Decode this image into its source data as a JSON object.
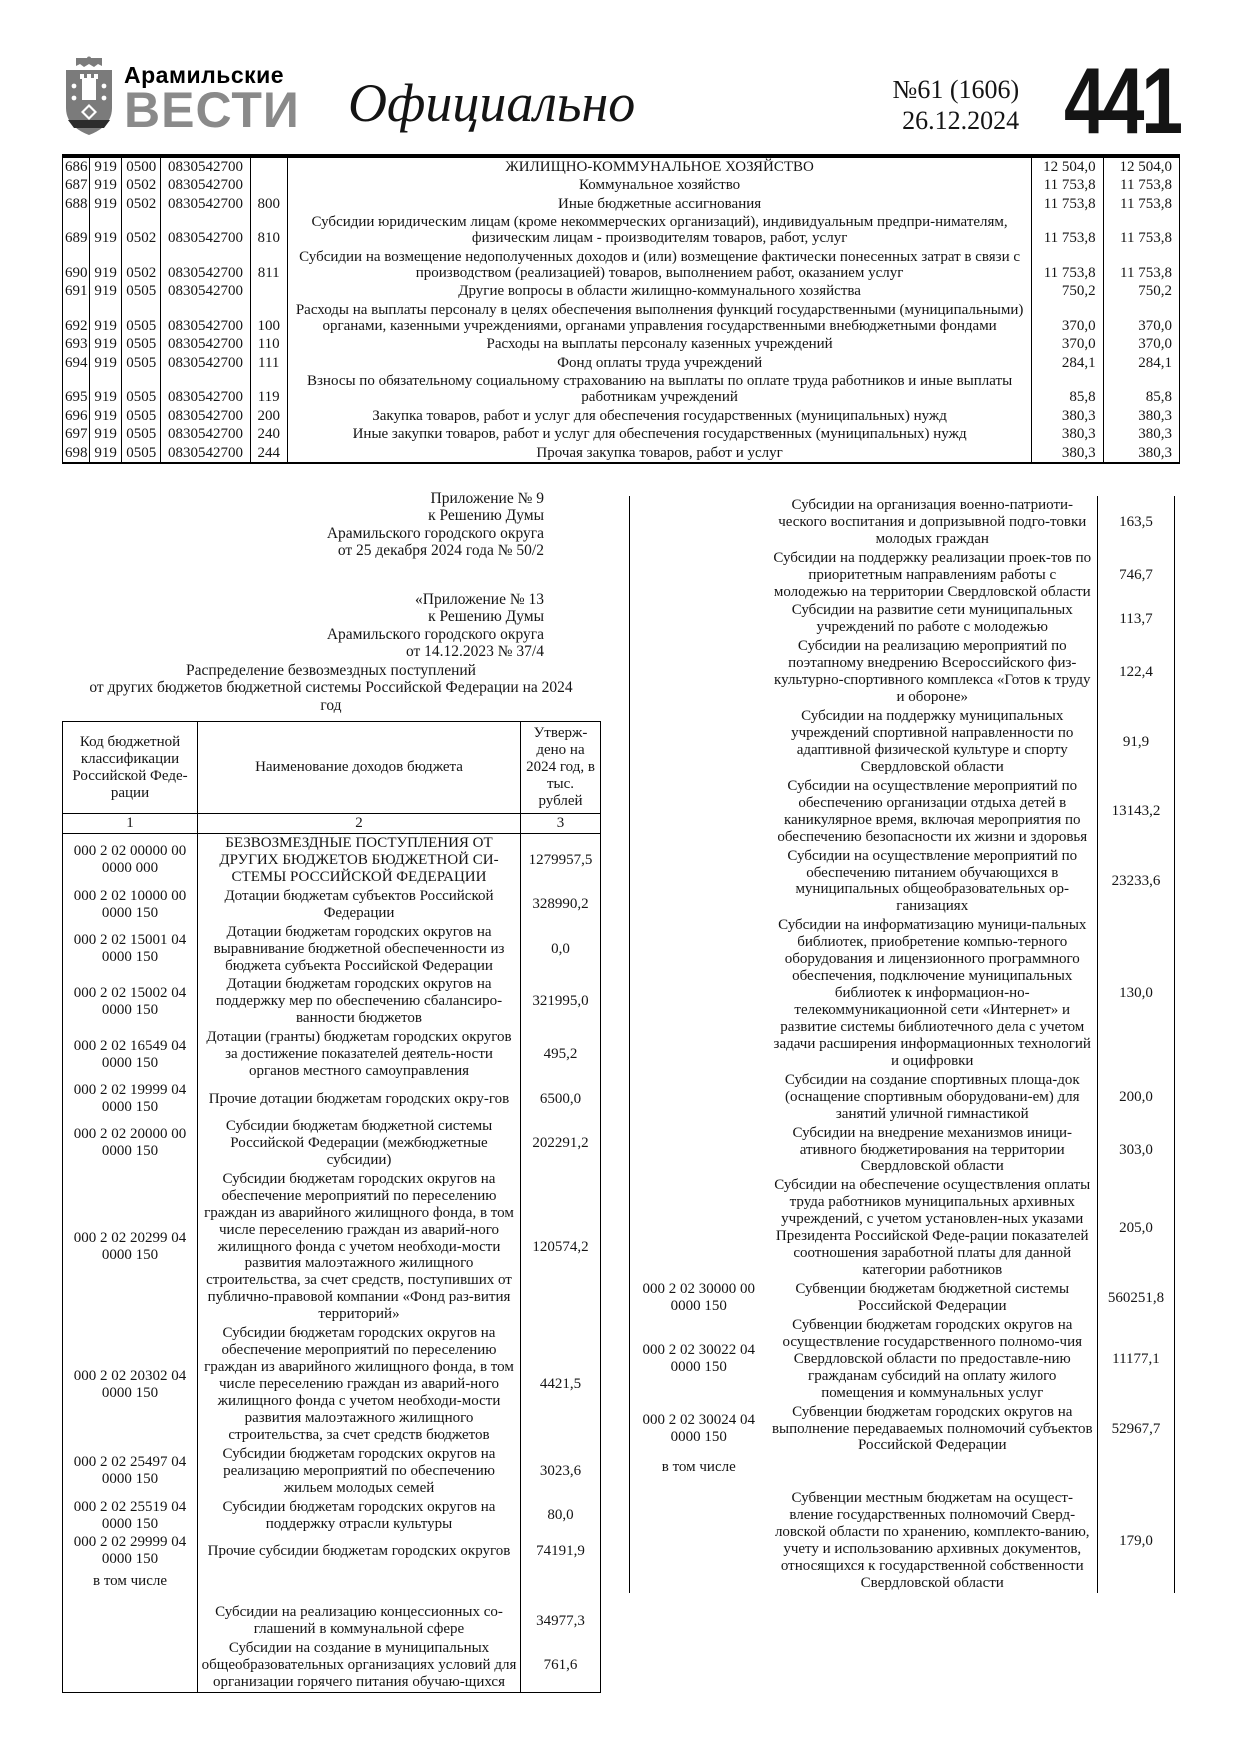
{
  "header": {
    "brand_line1": "Арамильские",
    "brand_line2": "ВЕСТИ",
    "section_title": "Официально",
    "issue": "№61 (1606)",
    "date": "26.12.2024",
    "page_number": "441"
  },
  "expenditure_table": {
    "rows": [
      {
        "n": "686",
        "grbs": "919",
        "sec": "0500",
        "target": "0830542700",
        "vtype": "",
        "name": "ЖИЛИЩНО-КОММУНАЛЬНОЕ ХОЗЯЙСТВО",
        "v1": "12 504,0",
        "v2": "12 504,0"
      },
      {
        "n": "687",
        "grbs": "919",
        "sec": "0502",
        "target": "0830542700",
        "vtype": "",
        "name": "Коммунальное хозяйство",
        "v1": "11 753,8",
        "v2": "11 753,8"
      },
      {
        "n": "688",
        "grbs": "919",
        "sec": "0502",
        "target": "0830542700",
        "vtype": "800",
        "name": "Иные бюджетные ассигнования",
        "v1": "11 753,8",
        "v2": "11 753,8"
      },
      {
        "n": "689",
        "grbs": "919",
        "sec": "0502",
        "target": "0830542700",
        "vtype": "810",
        "name": "Субсидии юридическим лицам (кроме некоммерческих организаций), индивидуальным предпри-нимателям, физическим лицам - производителям товаров, работ, услуг",
        "v1": "11 753,8",
        "v2": "11 753,8"
      },
      {
        "n": "690",
        "grbs": "919",
        "sec": "0502",
        "target": "0830542700",
        "vtype": "811",
        "name": "Субсидии на возмещение недополученных доходов и (или) возмещение фактически понесенных затрат в связи с производством (реализацией) товаров, выполнением работ, оказанием услуг",
        "v1": "11 753,8",
        "v2": "11 753,8"
      },
      {
        "n": "691",
        "grbs": "919",
        "sec": "0505",
        "target": "0830542700",
        "vtype": "",
        "name": "Другие вопросы в области жилищно-коммунального хозяйства",
        "v1": "750,2",
        "v2": "750,2"
      },
      {
        "n": "692",
        "grbs": "919",
        "sec": "0505",
        "target": "0830542700",
        "vtype": "100",
        "name": "Расходы на выплаты персоналу в целях обеспечения выполнения функций государственными (муниципальными) органами, казенными учреждениями, органами управления государственными внебюджетными фондами",
        "v1": "370,0",
        "v2": "370,0"
      },
      {
        "n": "693",
        "grbs": "919",
        "sec": "0505",
        "target": "0830542700",
        "vtype": "110",
        "name": "Расходы на выплаты персоналу казенных учреждений",
        "v1": "370,0",
        "v2": "370,0"
      },
      {
        "n": "694",
        "grbs": "919",
        "sec": "0505",
        "target": "0830542700",
        "vtype": "111",
        "name": "Фонд оплаты труда учреждений",
        "v1": "284,1",
        "v2": "284,1"
      },
      {
        "n": "695",
        "grbs": "919",
        "sec": "0505",
        "target": "0830542700",
        "vtype": "119",
        "name": "Взносы по обязательному социальному страхованию на выплаты по оплате труда работников и иные выплаты работникам учреждений",
        "v1": "85,8",
        "v2": "85,8"
      },
      {
        "n": "696",
        "grbs": "919",
        "sec": "0505",
        "target": "0830542700",
        "vtype": "200",
        "name": "Закупка товаров, работ и услуг для обеспечения государственных (муниципальных) нужд",
        "v1": "380,3",
        "v2": "380,3"
      },
      {
        "n": "697",
        "grbs": "919",
        "sec": "0505",
        "target": "0830542700",
        "vtype": "240",
        "name": "Иные закупки товаров, работ и услуг для обеспечения государственных (муниципальных) нужд",
        "v1": "380,3",
        "v2": "380,3"
      },
      {
        "n": "698",
        "grbs": "919",
        "sec": "0505",
        "target": "0830542700",
        "vtype": "244",
        "name": "Прочая закупка товаров, работ и услуг",
        "v1": "380,3",
        "v2": "380,3"
      }
    ]
  },
  "appendix1": {
    "line1": "Приложение № 9",
    "line2": "к Решению Думы",
    "line3": "Арамильского городского округа",
    "line4": "от 25 декабря 2024 года № 50/2"
  },
  "appendix2": {
    "line1": "«Приложение № 13",
    "line2": "к Решению Думы",
    "line3": "Арамильского городского округа",
    "line4": "от 14.12.2023 № 37/4"
  },
  "income_title": {
    "line1": "Распределение безвозмездных поступлений",
    "line2": "от других бюджетов бюджетной системы Российской Федерации на 2024",
    "line3": "год"
  },
  "income_table": {
    "header": {
      "col1": "Код бюджетной классификации Российской Феде-рации",
      "col2": "Наименование доходов бюджета",
      "col3": "Утверж-дено на 2024 год, в тыс. рублей",
      "num1": "1",
      "num2": "2",
      "num3": "3"
    },
    "left_rows": [
      {
        "code": "000 2 02 00000 00 0000 000",
        "name": "БЕЗВОЗМЕЗДНЫЕ ПОСТУПЛЕНИЯ ОТ ДРУГИХ БЮДЖЕТОВ БЮДЖЕТНОЙ СИ-СТЕМЫ РОССИЙСКОЙ ФЕДЕРАЦИИ",
        "value": "1279957,5"
      },
      {
        "code": "000 2 02 10000 00 0000 150",
        "name": "Дотации бюджетам субъектов Российской Федерации",
        "value": "328990,2"
      },
      {
        "code": "000 2 02 15001 04 0000 150",
        "name": "Дотации бюджетам городских округов на выравнивание бюджетной обеспеченности из бюджета субъекта Российской Федерации",
        "value": "0,0"
      },
      {
        "code": "000 2 02 15002 04 0000 150",
        "name": "Дотации бюджетам городских округов на поддержку мер по обеспечению сбалансиро-ванности бюджетов",
        "value": "321995,0"
      },
      {
        "code": "000 2 02 16549 04 0000 150",
        "name": "Дотации (гранты) бюджетам городских округов за достижение показателей деятель-ности органов местного самоуправления",
        "value": "495,2"
      },
      {
        "code": "000 2 02 19999 04 0000 150",
        "name": "Прочие дотации бюджетам городских окру-гов",
        "value": "6500,0"
      },
      {
        "code": "000 2 02 20000 00 0000 150",
        "name": "Субсидии бюджетам бюджетной системы Российской Федерации (межбюджетные субсидии)",
        "value": "202291,2"
      },
      {
        "code": "000 2 02 20299 04 0000 150",
        "name": "Субсидии бюджетам городских округов на обеспечение мероприятий по переселению граждан из аварийного жилищного фонда, в том числе переселению граждан из аварий-ного жилищного фонда с учетом необходи-мости развития малоэтажного жилищного строительства, за счет средств, поступивших от публично-правовой компании «Фонд раз-вития территорий»",
        "value": "120574,2"
      },
      {
        "code": "000 2 02 20302 04 0000 150",
        "name": "Субсидии бюджетам городских округов на обеспечение мероприятий по переселению граждан из аварийного жилищного фонда, в том числе переселению граждан из аварий-ного жилищного фонда с учетом необходи-мости развития малоэтажного жилищного строительства, за счет средств бюджетов",
        "value": "4421,5"
      },
      {
        "code": "000 2 02 25497 04 0000 150",
        "name": "Субсидии бюджетам городских округов на реализацию мероприятий по обеспечению жильем молодых семей",
        "value": "3023,6"
      },
      {
        "code": "000 2 02 25519 04 0000 150",
        "name": "Субсидии бюджетам городских округов на поддержку отрасли культуры",
        "value": "80,0"
      },
      {
        "code": "000 2 02 29999 04 0000 150",
        "name": "Прочие субсидии бюджетам городских округов",
        "value": "74191,9"
      },
      {
        "code": "в том числе",
        "name": "",
        "value": "",
        "cls": "note-row"
      },
      {
        "code": "",
        "name": "Субсидии на реализацию концессионных со-глашений в коммунальной сфере",
        "value": "34977,3"
      },
      {
        "code": "",
        "name": "Субсидии на создание в муниципальных общеобразовательных организациях условий для организации горячего питания обучаю-щихся",
        "value": "761,6"
      }
    ],
    "right_rows": [
      {
        "code": "",
        "name": "Субсидии на организация военно-патриоти-ческого воспитания и допризывной подго-товки молодых граждан",
        "value": "163,5"
      },
      {
        "code": "",
        "name": "Субсидии на поддержку реализации проек-тов по приоритетным направлениям работы с молодежью на территории Свердловской области",
        "value": "746,7"
      },
      {
        "code": "",
        "name": "Субсидии на развитие сети муниципальных учреждений по работе с молодежью",
        "value": "113,7"
      },
      {
        "code": "",
        "name": "Субсидии на реализацию мероприятий по поэтапному внедрению Всероссийского физ-культурно-спортивного комплекса «Готов к труду и обороне»",
        "value": "122,4"
      },
      {
        "code": "",
        "name": "Субсидии на поддержку муниципальных учреждений спортивной направленности по адаптивной физической культуре и спорту Свердловской области",
        "value": "91,9"
      },
      {
        "code": "",
        "name": "Субсидии на осуществление мероприятий по обеспечению организации отдыха детей в каникулярное время, включая мероприятия по обеспечению безопасности их жизни и здоровья",
        "value": "13143,2"
      },
      {
        "code": "",
        "name": "Субсидии на осуществление мероприятий по обеспечению питанием обучающихся в муниципальных общеобразовательных ор-ганизациях",
        "value": "23233,6"
      },
      {
        "code": "",
        "name": "Субсидии на информатизацию муници-пальных библиотек, приобретение компью-терного оборудования и лицензионного программного обеспечения, подключение муниципальных библиотек к информацион-но-телекоммуникационной сети «Интернет» и развитие системы библиотечного дела с учетом задачи расширения информационных технологий и оцифровки",
        "value": "130,0"
      },
      {
        "code": "",
        "name": "Субсидии на создание спортивных площа-док (оснащение спортивным оборудовани-ем) для занятий уличной гимнастикой",
        "value": "200,0"
      },
      {
        "code": "",
        "name": "Субсидии на внедрение механизмов иници-ативного бюджетирования на территории Свердловской области",
        "value": "303,0"
      },
      {
        "code": "",
        "name": "Субсидии на обеспечение осуществления оплаты труда работников муниципальных архивных учреждений, с учетом установлен-ных указами Президента Российской Феде-рации показателей соотношения заработной платы для данной категории работников",
        "value": "205,0"
      },
      {
        "code": "000 2 02 30000 00 0000 150",
        "name": "Субвенции бюджетам бюджетной системы Российской Федерации",
        "value": "560251,8"
      },
      {
        "code": "000 2 02 30022 04 0000 150",
        "name": "Субвенции бюджетам городских округов на осуществление государственного полномо-чия Свердловской области по предоставле-нию гражданам субсидий на оплату жилого помещения и коммунальных услуг",
        "value": "11177,1"
      },
      {
        "code": "000 2 02 30024 04 0000 150",
        "name": "Субвенции бюджетам городских округов на выполнение передаваемых полномочий субъектов Российской Федерации",
        "value": "52967,7"
      },
      {
        "code": "в том числе",
        "name": "",
        "value": "",
        "cls": "note-row"
      },
      {
        "code": "",
        "name": "Субвенции местным бюджетам на осущест-вление государственных полномочий Сверд-ловской области по хранению, комплекто-ванию, учету и использованию архивных документов, относящихся к государственной собственности Свердловской области",
        "value": "179,0"
      }
    ]
  }
}
